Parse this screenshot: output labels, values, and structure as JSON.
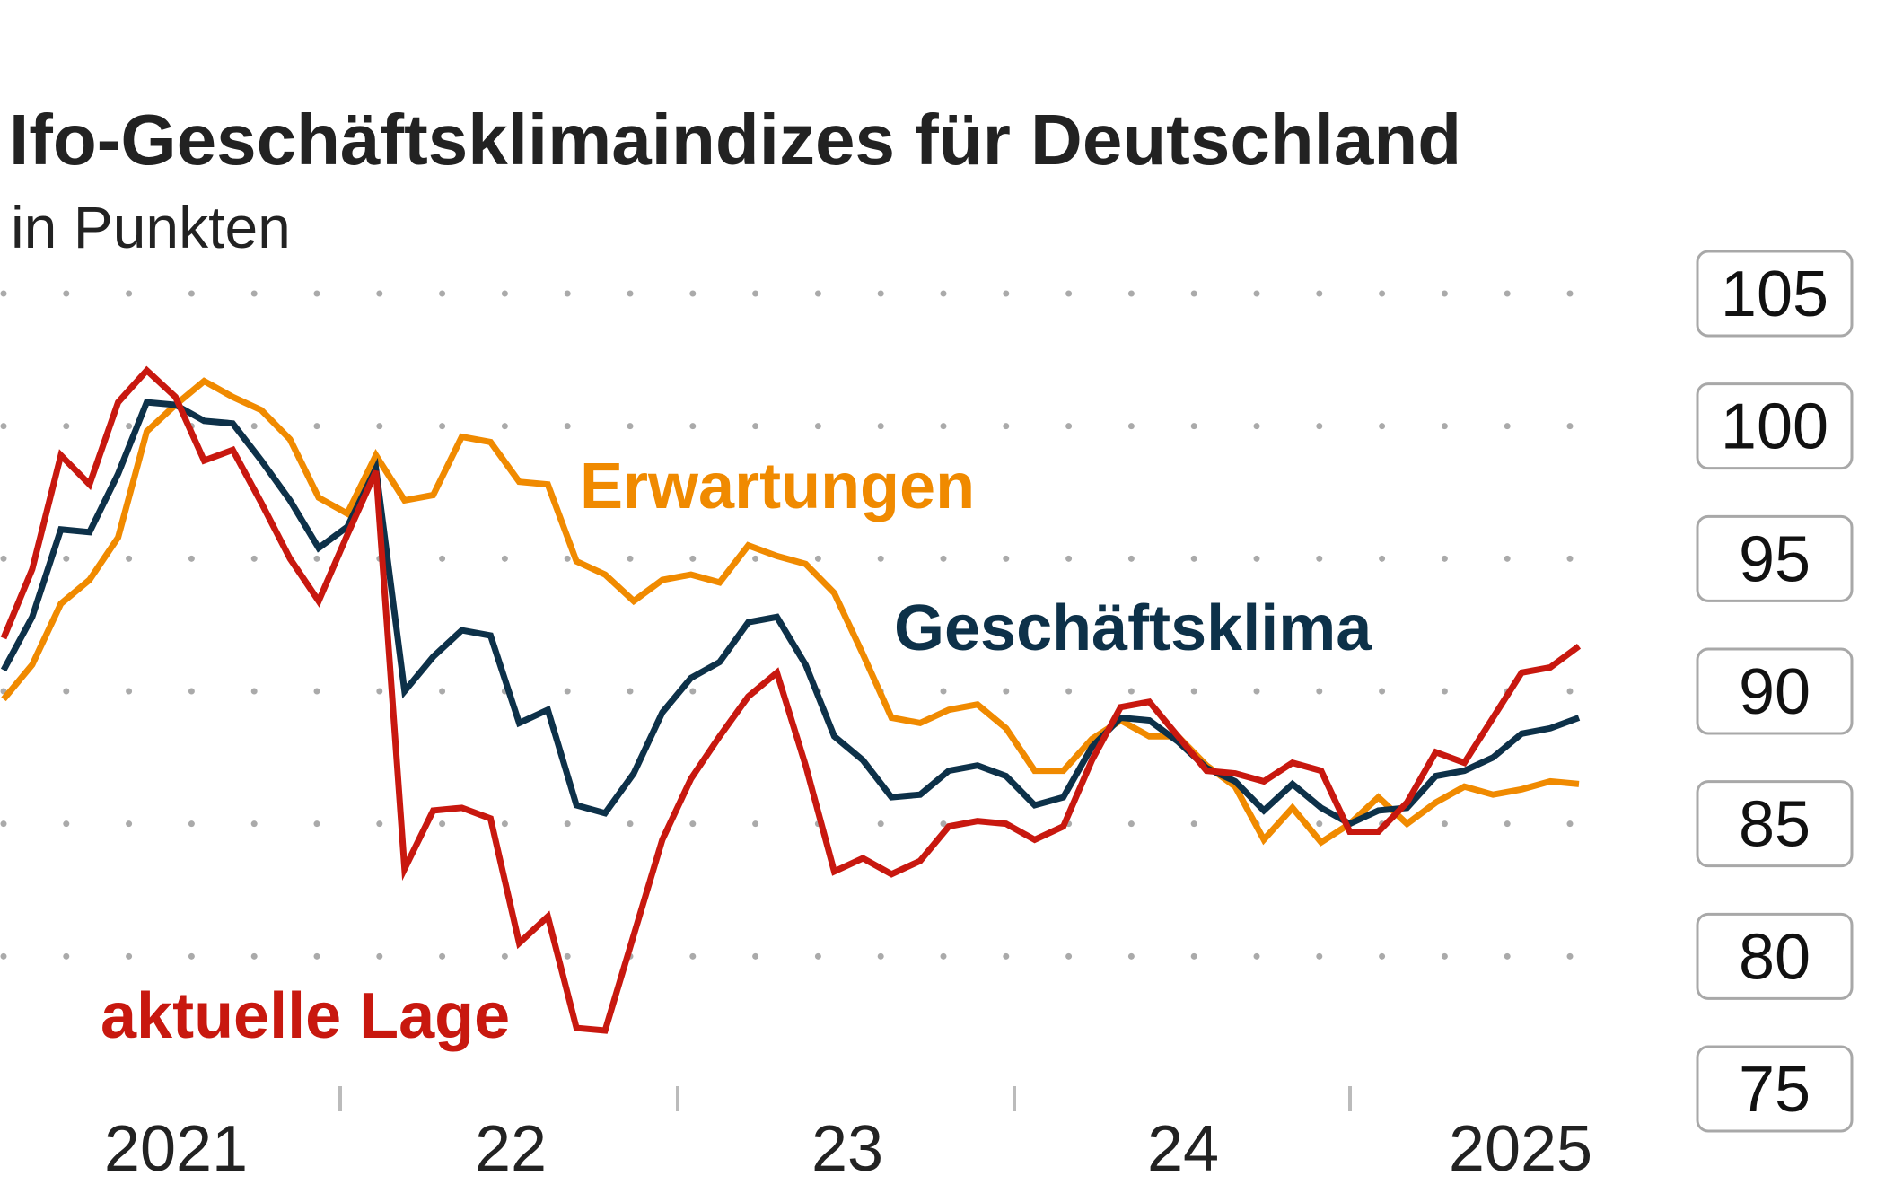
{
  "chart_data": {
    "type": "line",
    "title": "Ifo-Geschäftsklimaindizes für Deutschland",
    "subtitle": "in Punkten",
    "xlabel": "",
    "ylabel": "",
    "ylim": [
      75,
      105
    ],
    "yticks": [
      "105",
      "100",
      "95",
      "90",
      "85",
      "80",
      "75"
    ],
    "x_start": "2021-01",
    "x_frequency": "monthly",
    "xtick_labels": [
      "2021",
      "22",
      "23",
      "24",
      "2025"
    ],
    "grid": "dotted horizontal",
    "legend": "inline labels",
    "series": [
      {
        "name": "Erwartungen",
        "color": "#f08a00",
        "values": [
          89.7,
          91.0,
          93.3,
          94.2,
          95.8,
          99.8,
          100.8,
          101.7,
          101.1,
          100.6,
          99.5,
          97.3,
          96.7,
          98.9,
          97.2,
          97.4,
          99.6,
          99.4,
          97.9,
          97.8,
          94.9,
          94.4,
          93.4,
          94.2,
          94.4,
          94.1,
          95.5,
          95.1,
          94.8,
          93.7,
          91.4,
          89.0,
          88.8,
          89.3,
          89.5,
          88.6,
          87.0,
          87.0,
          88.2,
          88.9,
          88.3,
          88.3,
          87.2,
          86.4,
          84.4,
          85.6,
          84.3,
          85.0,
          86.0,
          85.0,
          85.8,
          86.4,
          86.1,
          86.3,
          86.6,
          86.5
        ]
      },
      {
        "name": "Geschäftsklima",
        "color": "#0d3149",
        "values": [
          90.8,
          92.8,
          96.1,
          96.0,
          98.2,
          100.9,
          100.8,
          100.2,
          100.1,
          98.7,
          97.2,
          95.4,
          96.2,
          98.4,
          90.0,
          91.3,
          92.3,
          92.1,
          88.8,
          89.3,
          85.7,
          85.4,
          86.9,
          89.2,
          90.5,
          91.1,
          92.6,
          92.8,
          91.0,
          88.3,
          87.4,
          86.0,
          86.1,
          87.0,
          87.2,
          86.8,
          85.7,
          86.0,
          87.9,
          89.0,
          88.9,
          88.1,
          87.1,
          86.6,
          85.5,
          86.5,
          85.6,
          85.0,
          85.5,
          85.6,
          86.8,
          87.0,
          87.5,
          88.4,
          88.6,
          89.0
        ]
      },
      {
        "name": "aktuelle Lage",
        "color": "#c8180f",
        "values": [
          92.0,
          94.6,
          98.9,
          97.8,
          100.9,
          102.1,
          101.1,
          98.7,
          99.1,
          97.1,
          95.0,
          93.4,
          95.9,
          98.3,
          83.3,
          85.5,
          85.6,
          85.2,
          80.5,
          81.5,
          77.3,
          77.2,
          80.8,
          84.4,
          86.7,
          88.3,
          89.8,
          90.7,
          87.2,
          83.2,
          83.7,
          83.1,
          83.6,
          84.9,
          85.1,
          85.0,
          84.4,
          84.9,
          87.4,
          89.4,
          89.6,
          88.3,
          87.0,
          86.9,
          86.6,
          87.3,
          87.0,
          84.7,
          84.7,
          85.8,
          87.7,
          87.3,
          89.0,
          90.7,
          90.9,
          91.7
        ]
      }
    ]
  }
}
